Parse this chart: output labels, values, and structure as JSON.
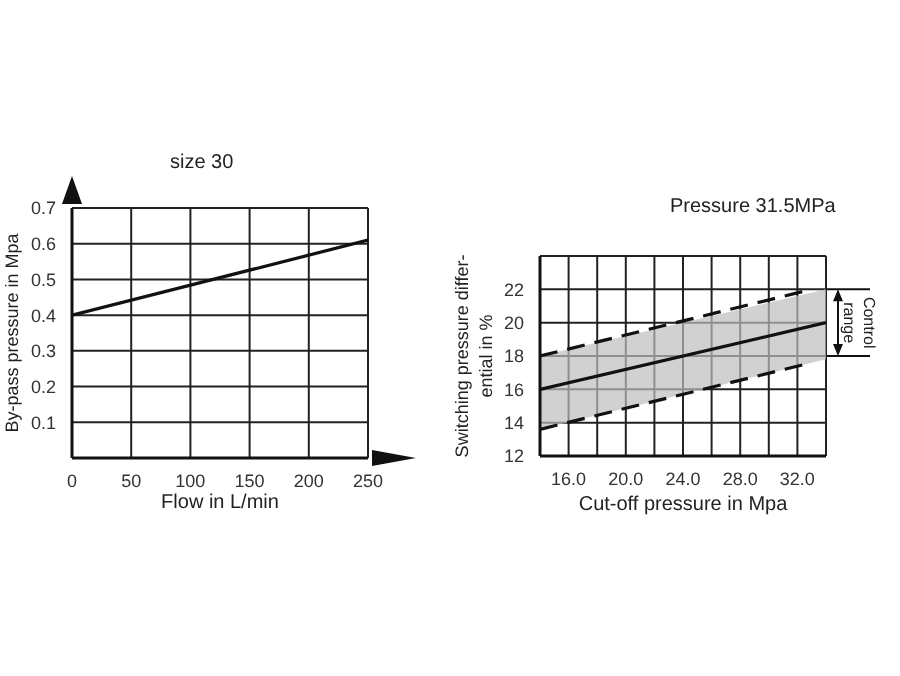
{
  "chart_data": [
    {
      "type": "line",
      "title": "size 30",
      "xlabel": "Flow in L/min",
      "ylabel": "By-pass pressure in Mpa",
      "xlim": [
        0,
        250
      ],
      "xticks": [
        0,
        50,
        100,
        150,
        200,
        250
      ],
      "ylim": [
        0,
        0.7
      ],
      "yticks": [
        0.1,
        0.2,
        0.3,
        0.4,
        0.5,
        0.6,
        0.7
      ],
      "grid": true,
      "marker": "none",
      "series": [
        {
          "color": "#111111",
          "x": [
            0,
            250
          ],
          "values": [
            0.4,
            0.61
          ],
          "line_style": "solid"
        }
      ]
    },
    {
      "type": "line",
      "title": "Pressure  31.5MPa",
      "xlabel": "Cut-off pressure in Mpa",
      "ylabel": "Switching pressure differ-\nential in %",
      "xlim": [
        14,
        34
      ],
      "xticks": [
        {
          "value": 16,
          "label": "16.0"
        },
        {
          "value": 18,
          "label": null
        },
        {
          "value": 20,
          "label": "20.0"
        },
        {
          "value": 22,
          "label": null
        },
        {
          "value": 24,
          "label": "24.0"
        },
        {
          "value": 26,
          "label": null
        },
        {
          "value": 28,
          "label": "28.0"
        },
        {
          "value": 30,
          "label": null
        },
        {
          "value": 32,
          "label": "32.0"
        }
      ],
      "ylim": [
        12,
        24
      ],
      "yticks": [
        12,
        14,
        16,
        18,
        20,
        22
      ],
      "grid": true,
      "marker": "none",
      "annotations": [
        "Control range"
      ],
      "series": [
        {
          "color": "#111111",
          "x": [
            14,
            33
          ],
          "values": [
            18,
            22
          ],
          "line_style": "dashed"
        },
        {
          "color": "#111111",
          "x": [
            14,
            34
          ],
          "values": [
            16,
            20
          ],
          "line_style": "solid",
          "lower": [
            13.6,
            17.8
          ],
          "upper": [
            18,
            22
          ]
        },
        {
          "color": "#111111",
          "x": [
            14,
            33
          ],
          "values": [
            13.6,
            17.6
          ],
          "line_style": "dashed"
        }
      ]
    }
  ]
}
